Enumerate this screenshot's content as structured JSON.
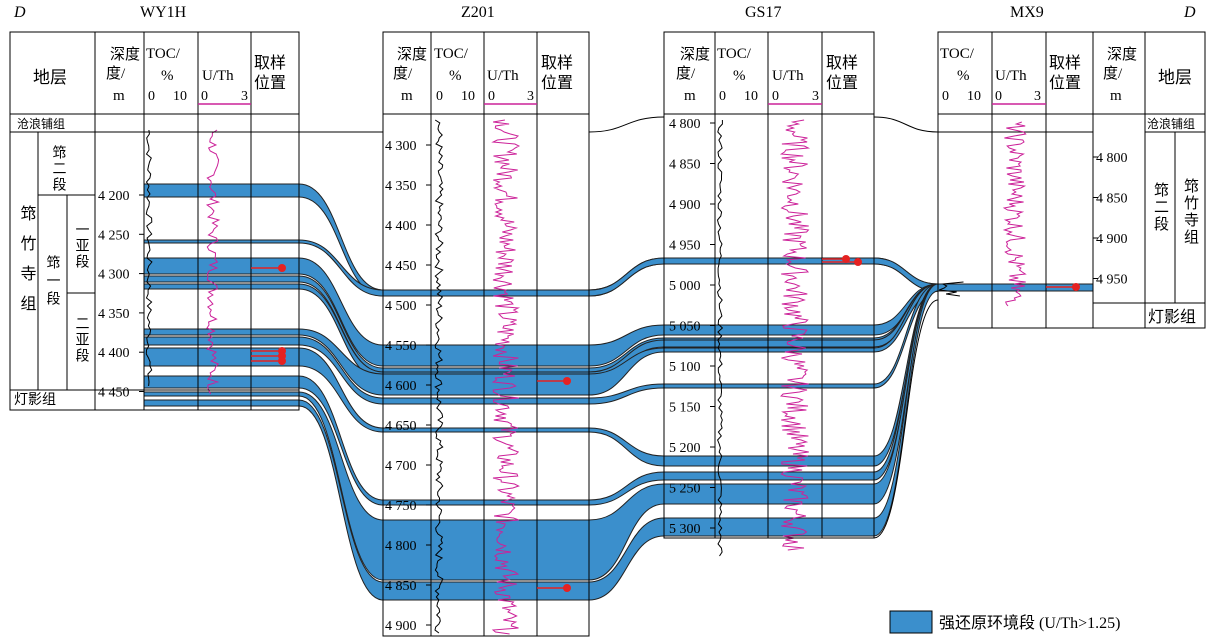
{
  "section_end_labels": {
    "left": "D",
    "right": "D"
  },
  "wells": [
    {
      "name": "WY1H",
      "columns": [
        "地层",
        "深度/m",
        "TOC/%",
        "U/Th",
        "取样位置"
      ],
      "strata": [
        "沧浪铺组",
        "筇竹寺组",
        "筇二段",
        "筇一段",
        "一亚段",
        "二亚段",
        "灯影组"
      ],
      "depth_ticks": [
        "4 200",
        "4 250",
        "4 300",
        "4 350",
        "4 400",
        "4 450"
      ]
    },
    {
      "name": "Z201",
      "columns": [
        "深度/m",
        "TOC/%",
        "U/Th",
        "取样位置"
      ],
      "depth_ticks": [
        "4 300",
        "4 350",
        "4 400",
        "4 450",
        "4 500",
        "4 550",
        "4 600",
        "4 650",
        "4 700",
        "4 750",
        "4 800",
        "4 850",
        "4 900"
      ]
    },
    {
      "name": "GS17",
      "columns": [
        "深度/m",
        "TOC/%",
        "U/Th",
        "取样位置"
      ],
      "depth_ticks": [
        "4 800",
        "4 850",
        "4 900",
        "4 950",
        "5 000",
        "5 050",
        "5 100",
        "5 150",
        "5 200",
        "5 250",
        "5 300"
      ]
    },
    {
      "name": "MX9",
      "columns": [
        "TOC/%",
        "U/Th",
        "取样位置",
        "深度/m",
        "地层"
      ],
      "strata": [
        "沧浪铺组",
        "筇二段",
        "筇竹寺组",
        "灯影组"
      ],
      "depth_ticks": [
        "4 800",
        "4 850",
        "4 900",
        "4 950"
      ]
    }
  ],
  "header_text": {
    "toc": "TOC/",
    "toc_unit": "%",
    "toc_scale": [
      "0",
      "10"
    ],
    "uth": "U/Th",
    "uth_scale": [
      "0",
      "3"
    ],
    "sample_1": "取样",
    "sample_2": "位置",
    "depth_1": "深度",
    "depth_2": "度/",
    "depth_unit": "m",
    "strata": "地层"
  },
  "legend": {
    "label": "强还原环境段 (U/Th>1.25)",
    "color": "#3b8fcc"
  },
  "colors": {
    "band": "#3b8fcc",
    "toc_curve": "#000000",
    "uth_curve": "#cc2299",
    "sample_marker": "#e52222"
  }
}
